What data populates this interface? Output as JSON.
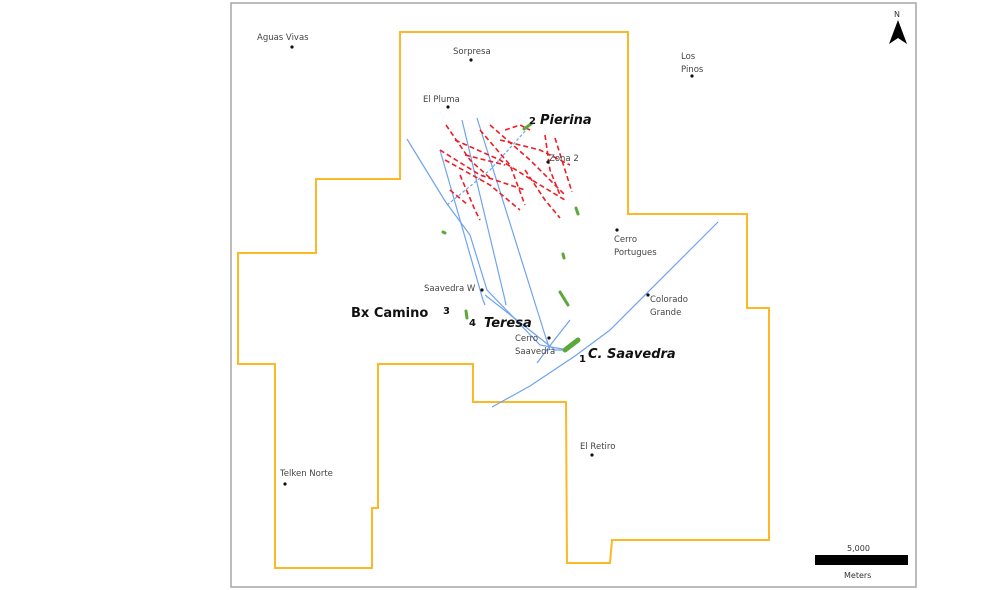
{
  "colors": {
    "boundary": "#FDB827",
    "structures": "#6FA3EF",
    "veins": "#EE1C25",
    "outcrops": "#5DA83A",
    "frame": "#A6A6A6"
  },
  "places": {
    "aguas_vivas": "Aguas Vivas",
    "sorpresa": "Sorpresa",
    "los": "Los",
    "pinos": "Pinos",
    "el_pluma": "El Pluma",
    "zona2": "Zona 2",
    "cerro_portugues_1": "Cerro",
    "cerro_portugues_2": "Portugues",
    "saavedra_w": "Saavedra W",
    "colorado_1": "Colorado",
    "colorado_2": "Grande",
    "cerro_saavedra_1": "Cerro",
    "cerro_saavedra_2": "Saavedra",
    "el_retiro": "El Retiro",
    "telken_norte": "Telken Norte"
  },
  "projects": [
    {
      "num": "2",
      "name": "Pierina"
    },
    {
      "num": "3",
      "name": "Bx Camino"
    },
    {
      "num": "4",
      "name": "Teresa"
    },
    {
      "num": "1",
      "name": "C. Saavedra"
    }
  ],
  "north_arrow": {
    "label": "N",
    "icon": "north-arrow-icon"
  },
  "scale_bar": {
    "value": "5,000",
    "unit": "Meters"
  }
}
